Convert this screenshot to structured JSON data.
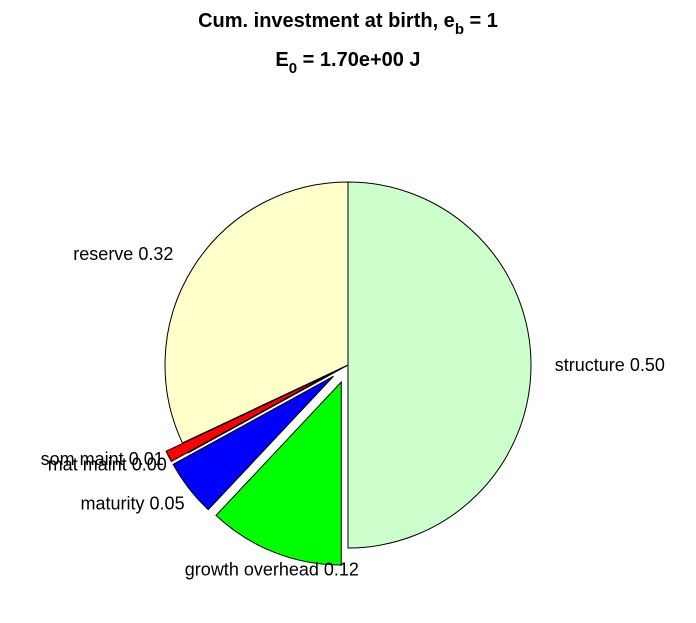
{
  "chart_data": {
    "type": "pie",
    "title": {
      "text": "Cum. investment at birth, e",
      "sub": "b",
      "tail": " = 1"
    },
    "subtitle": {
      "text": "E",
      "sub": "0",
      "tail": " = 1.70e+00 J"
    },
    "categories": [
      "structure",
      "growth overhead",
      "maturity",
      "mat maint",
      "som maint",
      "reserve"
    ],
    "values": [
      0.5,
      0.12,
      0.05,
      0.0,
      0.01,
      0.32
    ],
    "value_labels": [
      "0.50",
      "0.12",
      "0.05",
      "0.00",
      "0.01",
      "0.32"
    ],
    "colors": [
      "#ccffcc",
      "#00ff00",
      "#0000ff",
      "#ff00ff",
      "#ff0000",
      "#ffffcc"
    ],
    "explode": [
      false,
      true,
      true,
      false,
      true,
      false
    ]
  }
}
